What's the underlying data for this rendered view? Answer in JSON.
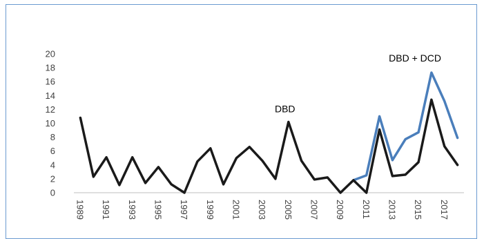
{
  "chart_data": {
    "type": "line",
    "title": "",
    "xlabel": "",
    "ylabel": "",
    "ylim": [
      0,
      20
    ],
    "yticks": [
      0,
      2,
      4,
      6,
      8,
      10,
      12,
      14,
      16,
      18,
      20
    ],
    "x": [
      1989,
      1990,
      1991,
      1992,
      1993,
      1994,
      1995,
      1996,
      1997,
      1998,
      1999,
      2000,
      2001,
      2002,
      2003,
      2004,
      2005,
      2006,
      2007,
      2008,
      2009,
      2010,
      2011,
      2012,
      2013,
      2014,
      2015,
      2016,
      2017,
      2018
    ],
    "xtick_labels": [
      "1989",
      "1991",
      "1993",
      "1995",
      "1997",
      "1999",
      "2001",
      "2003",
      "2005",
      "2007",
      "2009",
      "2011",
      "2013",
      "2015",
      "2017"
    ],
    "grid": false,
    "legend": "none",
    "series": [
      {
        "color": "#4a7ebb",
        "x": [
          2010,
          2011,
          2012,
          2013,
          2014,
          2015,
          2016,
          2017,
          2018
        ],
        "values": [
          1.8,
          2.5,
          11.0,
          4.7,
          7.7,
          8.7,
          17.3,
          13.2,
          7.9
        ]
      },
      {
        "color": "#1a1a1a",
        "x": [
          1989,
          1990,
          1991,
          1992,
          1993,
          1994,
          1995,
          1996,
          1997,
          1998,
          1999,
          2000,
          2001,
          2002,
          2003,
          2004,
          2005,
          2006,
          2007,
          2008,
          2009,
          2010,
          2011,
          2012,
          2013,
          2014,
          2015,
          2016,
          2017,
          2018
        ],
        "values": [
          10.8,
          2.3,
          5.1,
          1.1,
          5.1,
          1.4,
          3.7,
          1.2,
          0.0,
          4.5,
          6.4,
          1.2,
          5.0,
          6.6,
          4.6,
          2.0,
          10.2,
          4.6,
          1.9,
          2.2,
          0.0,
          1.8,
          0.0,
          9.1,
          2.4,
          2.6,
          4.4,
          13.4,
          6.7,
          4.0
        ]
      }
    ],
    "annotations": [
      {
        "text": "DBD",
        "x": 2005,
        "y": 11.6
      },
      {
        "text": "DBD + DCD",
        "x": 2015,
        "y": 18.9
      }
    ]
  }
}
